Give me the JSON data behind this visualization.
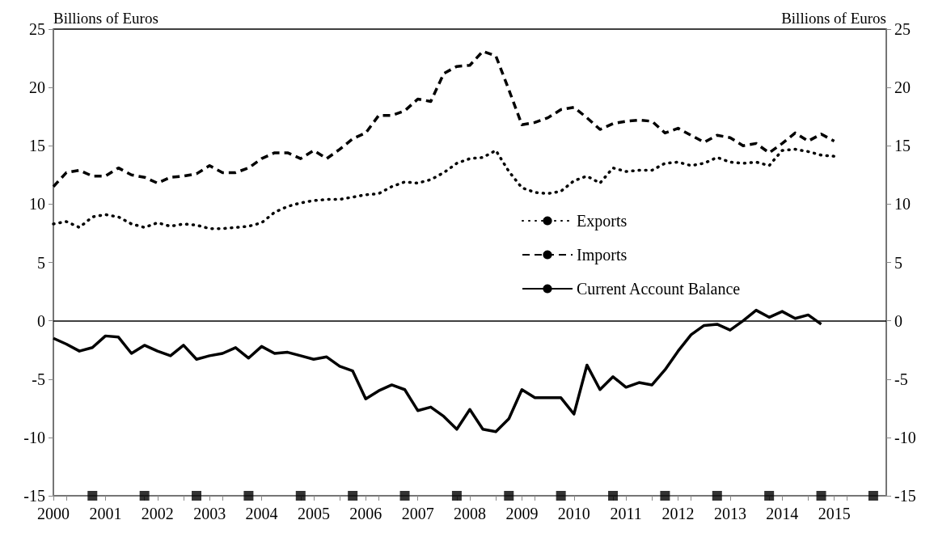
{
  "chart_data": {
    "type": "line",
    "ylabel": "Billions of Euros",
    "y2label": "Billions of Euros",
    "x": [
      2000,
      2000.25,
      2000.5,
      2000.75,
      2001,
      2001.25,
      2001.5,
      2001.75,
      2002,
      2002.25,
      2002.5,
      2002.75,
      2003,
      2003.25,
      2003.5,
      2003.75,
      2004,
      2004.25,
      2004.5,
      2004.75,
      2005,
      2005.25,
      2005.5,
      2005.75,
      2006,
      2006.25,
      2006.5,
      2006.75,
      2007,
      2007.25,
      2007.5,
      2007.75,
      2008,
      2008.25,
      2008.5,
      2008.75,
      2009,
      2009.25,
      2009.5,
      2009.75,
      2010,
      2010.25,
      2010.5,
      2010.75,
      2011,
      2011.25,
      2011.5,
      2011.75,
      2012,
      2012.25,
      2012.5,
      2012.75,
      2013,
      2013.25,
      2013.5,
      2013.75,
      2014,
      2014.25,
      2014.5,
      2014.75,
      2015
    ],
    "series": [
      {
        "name": "Exports",
        "color": "#000000",
        "line_style": "dotted",
        "values": [
          8.3,
          8.5,
          8.0,
          8.9,
          9.1,
          8.9,
          8.3,
          8.0,
          8.4,
          8.1,
          8.3,
          8.2,
          7.9,
          7.9,
          8.0,
          8.1,
          8.4,
          9.3,
          9.8,
          10.1,
          10.3,
          10.4,
          10.4,
          10.6,
          10.8,
          10.9,
          11.5,
          11.9,
          11.8,
          12.1,
          12.7,
          13.5,
          13.9,
          14.0,
          14.6,
          12.8,
          11.4,
          11.0,
          10.9,
          11.1,
          12.0,
          12.4,
          11.8,
          13.1,
          12.8,
          12.9,
          12.9,
          13.5,
          13.6,
          13.3,
          13.5,
          14.0,
          13.6,
          13.5,
          13.6,
          13.3,
          14.6,
          14.7,
          14.5,
          14.2,
          14.1
        ]
      },
      {
        "name": "Imports",
        "color": "#000000",
        "line_style": "dashed",
        "values": [
          11.5,
          12.7,
          12.9,
          12.4,
          12.4,
          13.1,
          12.5,
          12.3,
          11.8,
          12.3,
          12.4,
          12.6,
          13.3,
          12.7,
          12.7,
          13.1,
          13.9,
          14.4,
          14.4,
          13.9,
          14.6,
          13.9,
          14.7,
          15.6,
          16.1,
          17.6,
          17.6,
          18.0,
          19.0,
          18.8,
          21.2,
          21.8,
          21.9,
          23.1,
          22.7,
          19.8,
          16.8,
          17.0,
          17.4,
          18.1,
          18.3,
          17.4,
          16.4,
          16.9,
          17.1,
          17.2,
          17.1,
          16.1,
          16.5,
          15.9,
          15.3,
          15.9,
          15.7,
          15.0,
          15.2,
          14.4,
          15.2,
          16.1,
          15.4,
          16.0,
          15.4
        ]
      },
      {
        "name": "Current Account Balance",
        "color": "#000000",
        "line_style": "solid",
        "values": [
          -1.5,
          -2.0,
          -2.6,
          -2.3,
          -1.3,
          -1.4,
          -2.8,
          -2.1,
          -2.6,
          -3.0,
          -2.1,
          -3.3,
          -3.0,
          -2.8,
          -2.3,
          -3.2,
          -2.2,
          -2.8,
          -2.7,
          -3.0,
          -3.3,
          -3.1,
          -3.9,
          -4.3,
          -6.7,
          -6.0,
          -5.5,
          -5.9,
          -7.7,
          -7.4,
          -8.2,
          -9.3,
          -7.6,
          -9.3,
          -9.5,
          -8.4,
          -5.9,
          -6.6,
          -6.6,
          -6.6,
          -8.0,
          -3.8,
          -5.9,
          -4.8,
          -5.7,
          -5.3,
          -5.5,
          -4.2,
          -2.6,
          -1.2,
          -0.4,
          -0.3,
          -0.8,
          0.0,
          0.9,
          0.3,
          0.8,
          0.2,
          0.5,
          -0.3,
          null
        ]
      },
      {
        "type": "scatter",
        "marker": "square",
        "color": "#000000",
        "x": [
          2000.75,
          2001.75,
          2002.75,
          2003.75,
          2004.75,
          2005.75,
          2006.75,
          2007.75,
          2008.75,
          2009.75,
          2010.75,
          2011.75,
          2012.75,
          2013.75,
          2014.75,
          2015.75
        ],
        "values": [
          -15,
          -15,
          -15,
          -15,
          -15,
          -15,
          -15,
          -15,
          -15,
          -15,
          -15,
          -15,
          -15,
          -15,
          -15,
          -15
        ]
      }
    ],
    "xlim": [
      2000,
      2016
    ],
    "xticks": [
      2000,
      2001,
      2002,
      2003,
      2004,
      2005,
      2006,
      2007,
      2008,
      2009,
      2010,
      2011,
      2012,
      2013,
      2014,
      2015
    ],
    "ylim": [
      -15,
      25
    ],
    "yticks": [
      -15,
      -10,
      -5,
      0,
      5,
      10,
      15,
      20,
      25
    ],
    "y2lim": [
      -15,
      25
    ],
    "y2ticks": [
      -15,
      -10,
      -5,
      0,
      5,
      10,
      15,
      20,
      25
    ],
    "ref_lines": [
      {
        "axis": "y",
        "value": 0,
        "color": "#000000"
      }
    ],
    "legend": "center right",
    "marker": "none"
  }
}
